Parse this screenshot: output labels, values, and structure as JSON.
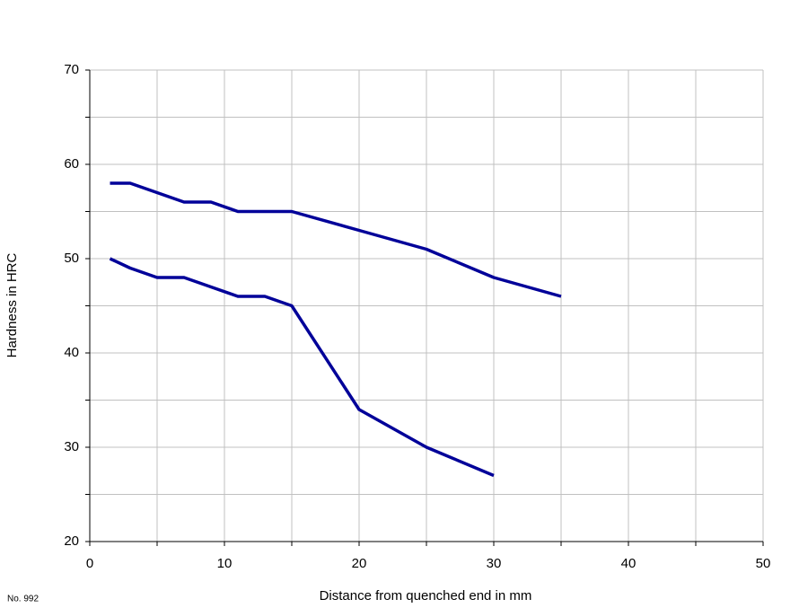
{
  "chart_data": {
    "type": "line",
    "x_label": "Distance from quenched end in mm",
    "y_label": "Hardness in HRC",
    "note": "No. 992",
    "xlim": [
      0,
      50
    ],
    "xticks": [
      0,
      10,
      20,
      30,
      40,
      50
    ],
    "minor_xticks": [
      5,
      15,
      25,
      35,
      45
    ],
    "ylim": [
      20,
      70
    ],
    "yticks": [
      20,
      30,
      40,
      50,
      60,
      70
    ],
    "minor_yticks": [
      25,
      35,
      45,
      55,
      65
    ],
    "grid": true,
    "series": [
      {
        "color": "#000099",
        "x": [
          1.5,
          3,
          5,
          7,
          9,
          11,
          13,
          15,
          20,
          25,
          30,
          35
        ],
        "values": [
          58,
          58,
          57,
          56,
          56,
          55,
          55,
          55,
          53,
          51,
          48,
          46
        ]
      },
      {
        "color": "#000099",
        "x": [
          1.5,
          3,
          5,
          7,
          9,
          11,
          13,
          15,
          20,
          25,
          30
        ],
        "values": [
          50,
          49,
          48,
          48,
          47,
          46,
          46,
          45,
          34,
          30,
          27
        ]
      }
    ]
  }
}
